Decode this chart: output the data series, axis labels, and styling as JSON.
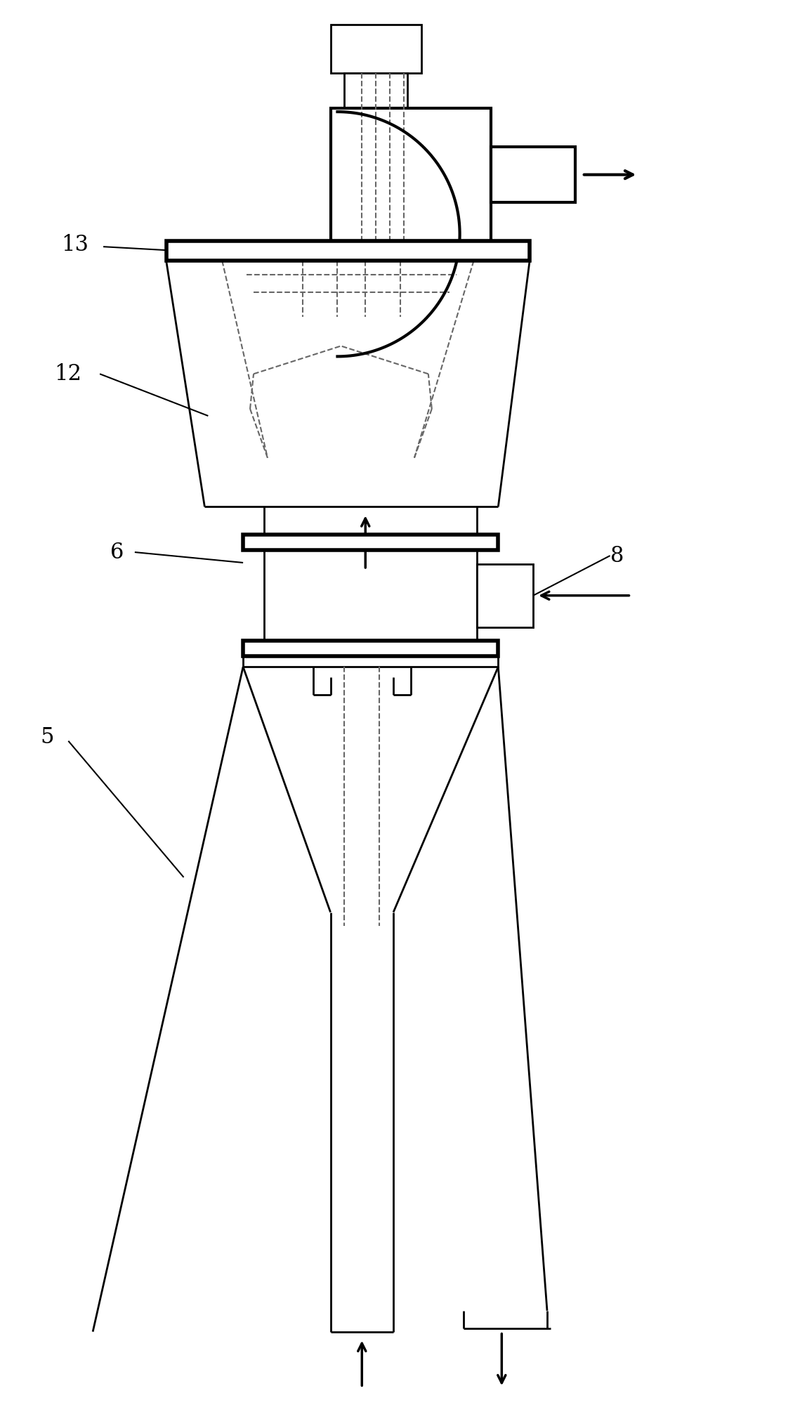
{
  "bg_color": "#ffffff",
  "line_color": "#000000",
  "dashed_color": "#666666",
  "figsize": [
    11.49,
    20.0
  ],
  "dpi": 100
}
